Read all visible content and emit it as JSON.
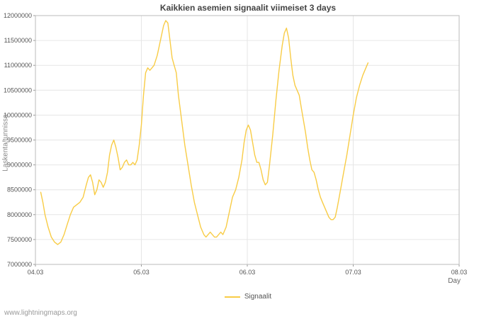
{
  "footer": {
    "watermark": "www.lightningmaps.org"
  },
  "chart_data": {
    "type": "line",
    "title": "Kaikkien asemien signaalit viimeiset 3 days",
    "xlabel": "Day",
    "ylabel": "Laskenta/tunnissa",
    "grid": true,
    "legend_position": "bottom-center",
    "plot_border_color": "#bbbbbb",
    "grid_color": "#e6e6e6",
    "tick_label_color": "#555555",
    "xlim": [
      0,
      4
    ],
    "ylim": [
      7000000,
      12000000
    ],
    "x_ticks": [
      {
        "v": 0,
        "label": "04.03"
      },
      {
        "v": 1,
        "label": "05.03"
      },
      {
        "v": 2,
        "label": "06.03"
      },
      {
        "v": 3,
        "label": "07.03"
      },
      {
        "v": 4,
        "label": "08.03"
      }
    ],
    "y_ticks": [
      {
        "v": 7000000,
        "label": "7000000"
      },
      {
        "v": 7500000,
        "label": "7500000"
      },
      {
        "v": 8000000,
        "label": "8000000"
      },
      {
        "v": 8500000,
        "label": "8500000"
      },
      {
        "v": 9000000,
        "label": "9000000"
      },
      {
        "v": 9500000,
        "label": "9500000"
      },
      {
        "v": 10000000,
        "label": "10000000"
      },
      {
        "v": 10500000,
        "label": "10500000"
      },
      {
        "v": 11000000,
        "label": "11000000"
      },
      {
        "v": 11500000,
        "label": "11500000"
      },
      {
        "v": 12000000,
        "label": "12000000"
      }
    ],
    "series": [
      {
        "name": "Signaalit",
        "color": "#f8cc46",
        "points": [
          [
            0.05,
            8450000
          ],
          [
            0.07,
            8250000
          ],
          [
            0.09,
            8000000
          ],
          [
            0.12,
            7750000
          ],
          [
            0.15,
            7550000
          ],
          [
            0.18,
            7450000
          ],
          [
            0.21,
            7400000
          ],
          [
            0.24,
            7450000
          ],
          [
            0.27,
            7600000
          ],
          [
            0.3,
            7800000
          ],
          [
            0.33,
            8000000
          ],
          [
            0.36,
            8150000
          ],
          [
            0.39,
            8200000
          ],
          [
            0.42,
            8250000
          ],
          [
            0.45,
            8350000
          ],
          [
            0.48,
            8600000
          ],
          [
            0.5,
            8750000
          ],
          [
            0.52,
            8800000
          ],
          [
            0.54,
            8650000
          ],
          [
            0.56,
            8400000
          ],
          [
            0.58,
            8500000
          ],
          [
            0.6,
            8700000
          ],
          [
            0.62,
            8650000
          ],
          [
            0.64,
            8550000
          ],
          [
            0.66,
            8650000
          ],
          [
            0.68,
            8850000
          ],
          [
            0.7,
            9200000
          ],
          [
            0.72,
            9400000
          ],
          [
            0.74,
            9500000
          ],
          [
            0.76,
            9350000
          ],
          [
            0.78,
            9150000
          ],
          [
            0.8,
            8900000
          ],
          [
            0.82,
            8950000
          ],
          [
            0.84,
            9050000
          ],
          [
            0.86,
            9100000
          ],
          [
            0.88,
            9000000
          ],
          [
            0.9,
            9000000
          ],
          [
            0.92,
            9050000
          ],
          [
            0.94,
            9000000
          ],
          [
            0.96,
            9100000
          ],
          [
            0.98,
            9400000
          ],
          [
            1.0,
            9800000
          ],
          [
            1.02,
            10400000
          ],
          [
            1.04,
            10850000
          ],
          [
            1.06,
            10950000
          ],
          [
            1.08,
            10900000
          ],
          [
            1.1,
            10950000
          ],
          [
            1.12,
            11000000
          ],
          [
            1.15,
            11200000
          ],
          [
            1.18,
            11500000
          ],
          [
            1.21,
            11800000
          ],
          [
            1.23,
            11900000
          ],
          [
            1.25,
            11850000
          ],
          [
            1.27,
            11500000
          ],
          [
            1.29,
            11150000
          ],
          [
            1.31,
            11000000
          ],
          [
            1.33,
            10850000
          ],
          [
            1.35,
            10400000
          ],
          [
            1.38,
            9900000
          ],
          [
            1.41,
            9400000
          ],
          [
            1.44,
            9000000
          ],
          [
            1.47,
            8600000
          ],
          [
            1.5,
            8250000
          ],
          [
            1.53,
            8000000
          ],
          [
            1.56,
            7750000
          ],
          [
            1.59,
            7600000
          ],
          [
            1.61,
            7550000
          ],
          [
            1.63,
            7600000
          ],
          [
            1.65,
            7650000
          ],
          [
            1.67,
            7600000
          ],
          [
            1.69,
            7550000
          ],
          [
            1.71,
            7550000
          ],
          [
            1.73,
            7600000
          ],
          [
            1.75,
            7650000
          ],
          [
            1.77,
            7600000
          ],
          [
            1.8,
            7750000
          ],
          [
            1.83,
            8050000
          ],
          [
            1.86,
            8350000
          ],
          [
            1.89,
            8500000
          ],
          [
            1.92,
            8750000
          ],
          [
            1.95,
            9100000
          ],
          [
            1.97,
            9450000
          ],
          [
            1.99,
            9700000
          ],
          [
            2.01,
            9800000
          ],
          [
            2.03,
            9700000
          ],
          [
            2.05,
            9450000
          ],
          [
            2.07,
            9200000
          ],
          [
            2.09,
            9050000
          ],
          [
            2.11,
            9050000
          ],
          [
            2.13,
            8900000
          ],
          [
            2.15,
            8700000
          ],
          [
            2.17,
            8600000
          ],
          [
            2.19,
            8650000
          ],
          [
            2.21,
            9000000
          ],
          [
            2.24,
            9600000
          ],
          [
            2.27,
            10300000
          ],
          [
            2.3,
            10900000
          ],
          [
            2.33,
            11400000
          ],
          [
            2.35,
            11650000
          ],
          [
            2.37,
            11750000
          ],
          [
            2.39,
            11550000
          ],
          [
            2.41,
            11150000
          ],
          [
            2.43,
            10800000
          ],
          [
            2.45,
            10600000
          ],
          [
            2.47,
            10500000
          ],
          [
            2.49,
            10400000
          ],
          [
            2.51,
            10150000
          ],
          [
            2.53,
            9900000
          ],
          [
            2.55,
            9650000
          ],
          [
            2.57,
            9350000
          ],
          [
            2.59,
            9100000
          ],
          [
            2.61,
            8900000
          ],
          [
            2.63,
            8850000
          ],
          [
            2.65,
            8700000
          ],
          [
            2.67,
            8500000
          ],
          [
            2.69,
            8350000
          ],
          [
            2.71,
            8250000
          ],
          [
            2.73,
            8150000
          ],
          [
            2.75,
            8050000
          ],
          [
            2.77,
            7950000
          ],
          [
            2.79,
            7900000
          ],
          [
            2.81,
            7900000
          ],
          [
            2.83,
            7950000
          ],
          [
            2.85,
            8150000
          ],
          [
            2.88,
            8500000
          ],
          [
            2.91,
            8850000
          ],
          [
            2.94,
            9200000
          ],
          [
            2.97,
            9600000
          ],
          [
            3.0,
            10000000
          ],
          [
            3.03,
            10350000
          ],
          [
            3.06,
            10600000
          ],
          [
            3.09,
            10800000
          ],
          [
            3.12,
            10950000
          ],
          [
            3.14,
            11050000
          ]
        ]
      }
    ]
  }
}
